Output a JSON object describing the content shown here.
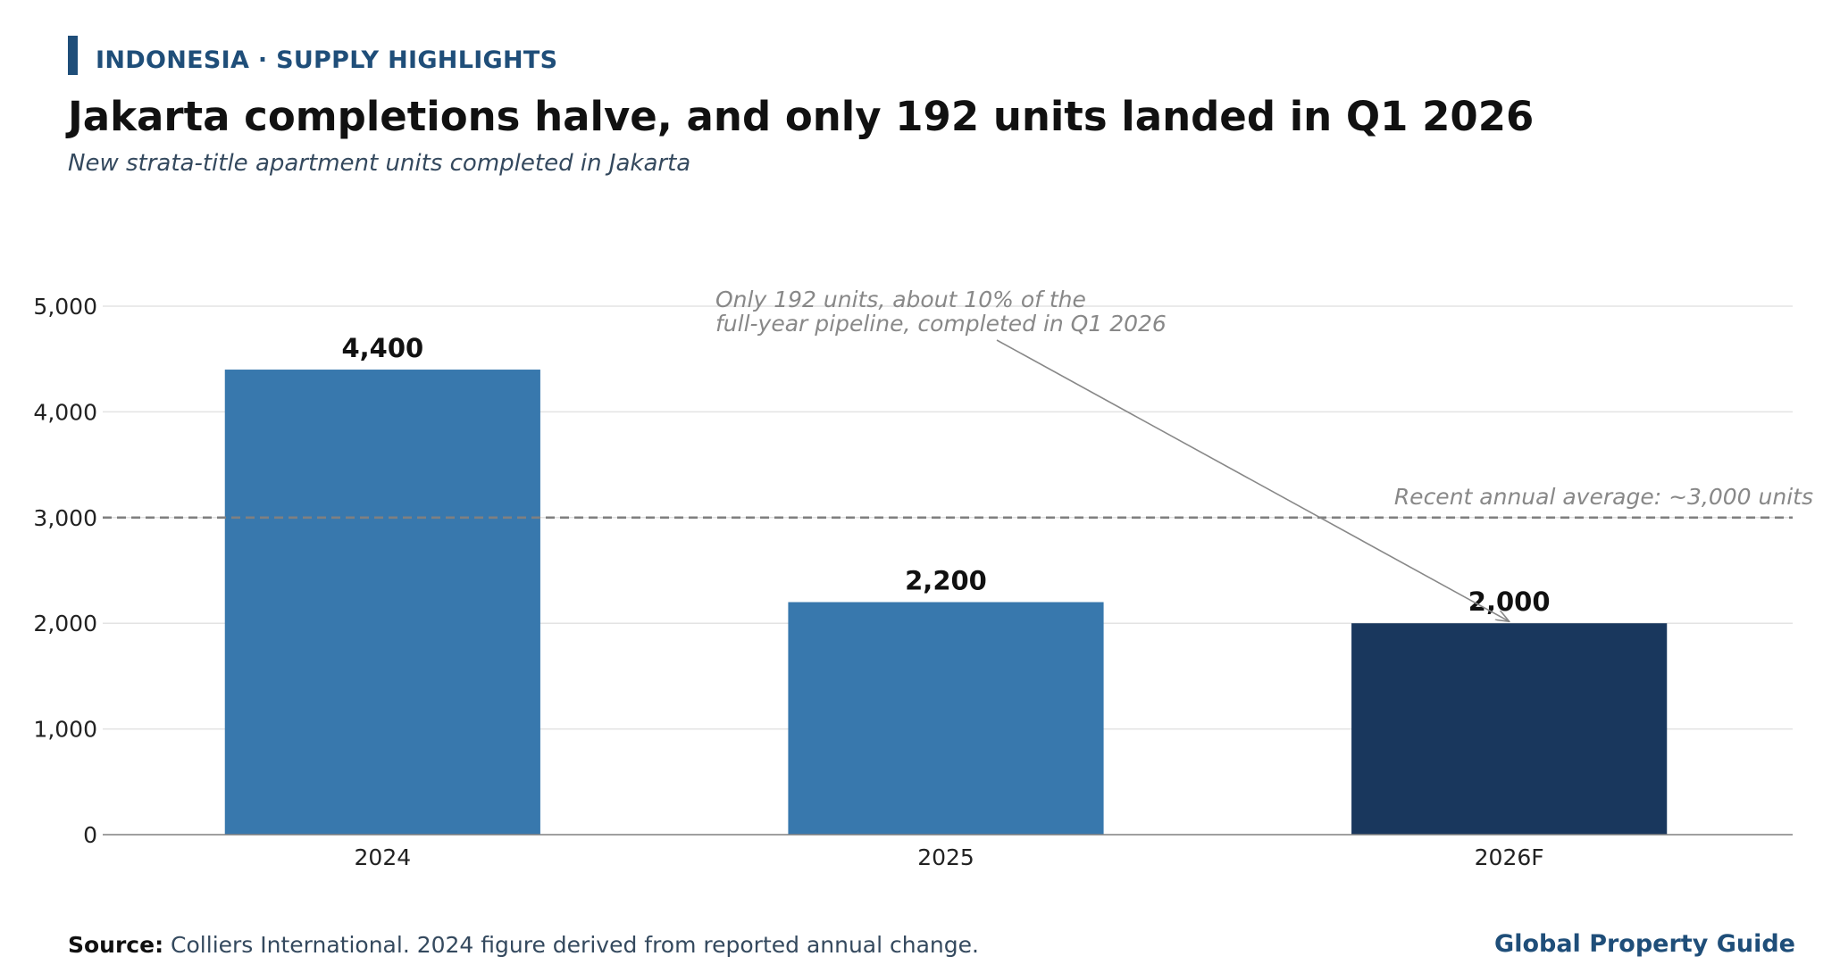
{
  "header": {
    "kicker": "INDONESIA · SUPPLY HIGHLIGHTS",
    "title": "Jakarta completions halve, and only 192 units landed in Q1 2026",
    "subtitle": "New strata-title apartment units completed in Jakarta"
  },
  "footer": {
    "source_label": "Source:",
    "source_text": "Colliers International. 2024 figure derived from reported annual change.",
    "brand": "Global Property Guide"
  },
  "colors": {
    "bar_default": "#3878ad",
    "bar_forecast": "#19375d",
    "accent": "#1f4e79",
    "reference_line": "#808080",
    "annotation": "#888888"
  },
  "chart_data": {
    "type": "bar",
    "title": "Jakarta completions halve, and only 192 units landed in Q1 2026",
    "subtitle": "New strata-title apartment units completed in Jakarta",
    "categories": [
      "2024",
      "2025",
      "2026F"
    ],
    "values": [
      4400,
      2200,
      2000
    ],
    "data_labels": [
      "4,400",
      "2,200",
      "2,000"
    ],
    "highlight_category": "2026F",
    "xlabel": "",
    "ylabel": "",
    "ylim": [
      0,
      5000
    ],
    "yticks": [
      0,
      1000,
      2000,
      3000,
      4000,
      5000
    ],
    "ytick_labels": [
      "0",
      "1,000",
      "2,000",
      "3,000",
      "4,000",
      "5,000"
    ],
    "grid": "horizontal",
    "reference_line": {
      "value": 3000,
      "label": "Recent annual average: ~3,000 units",
      "style": "dashed"
    },
    "annotation": {
      "lines": [
        "Only 192 units, about 10% of the",
        "full-year pipeline, completed in Q1 2026"
      ],
      "target_category": "2026F",
      "target_value": 2000
    }
  }
}
